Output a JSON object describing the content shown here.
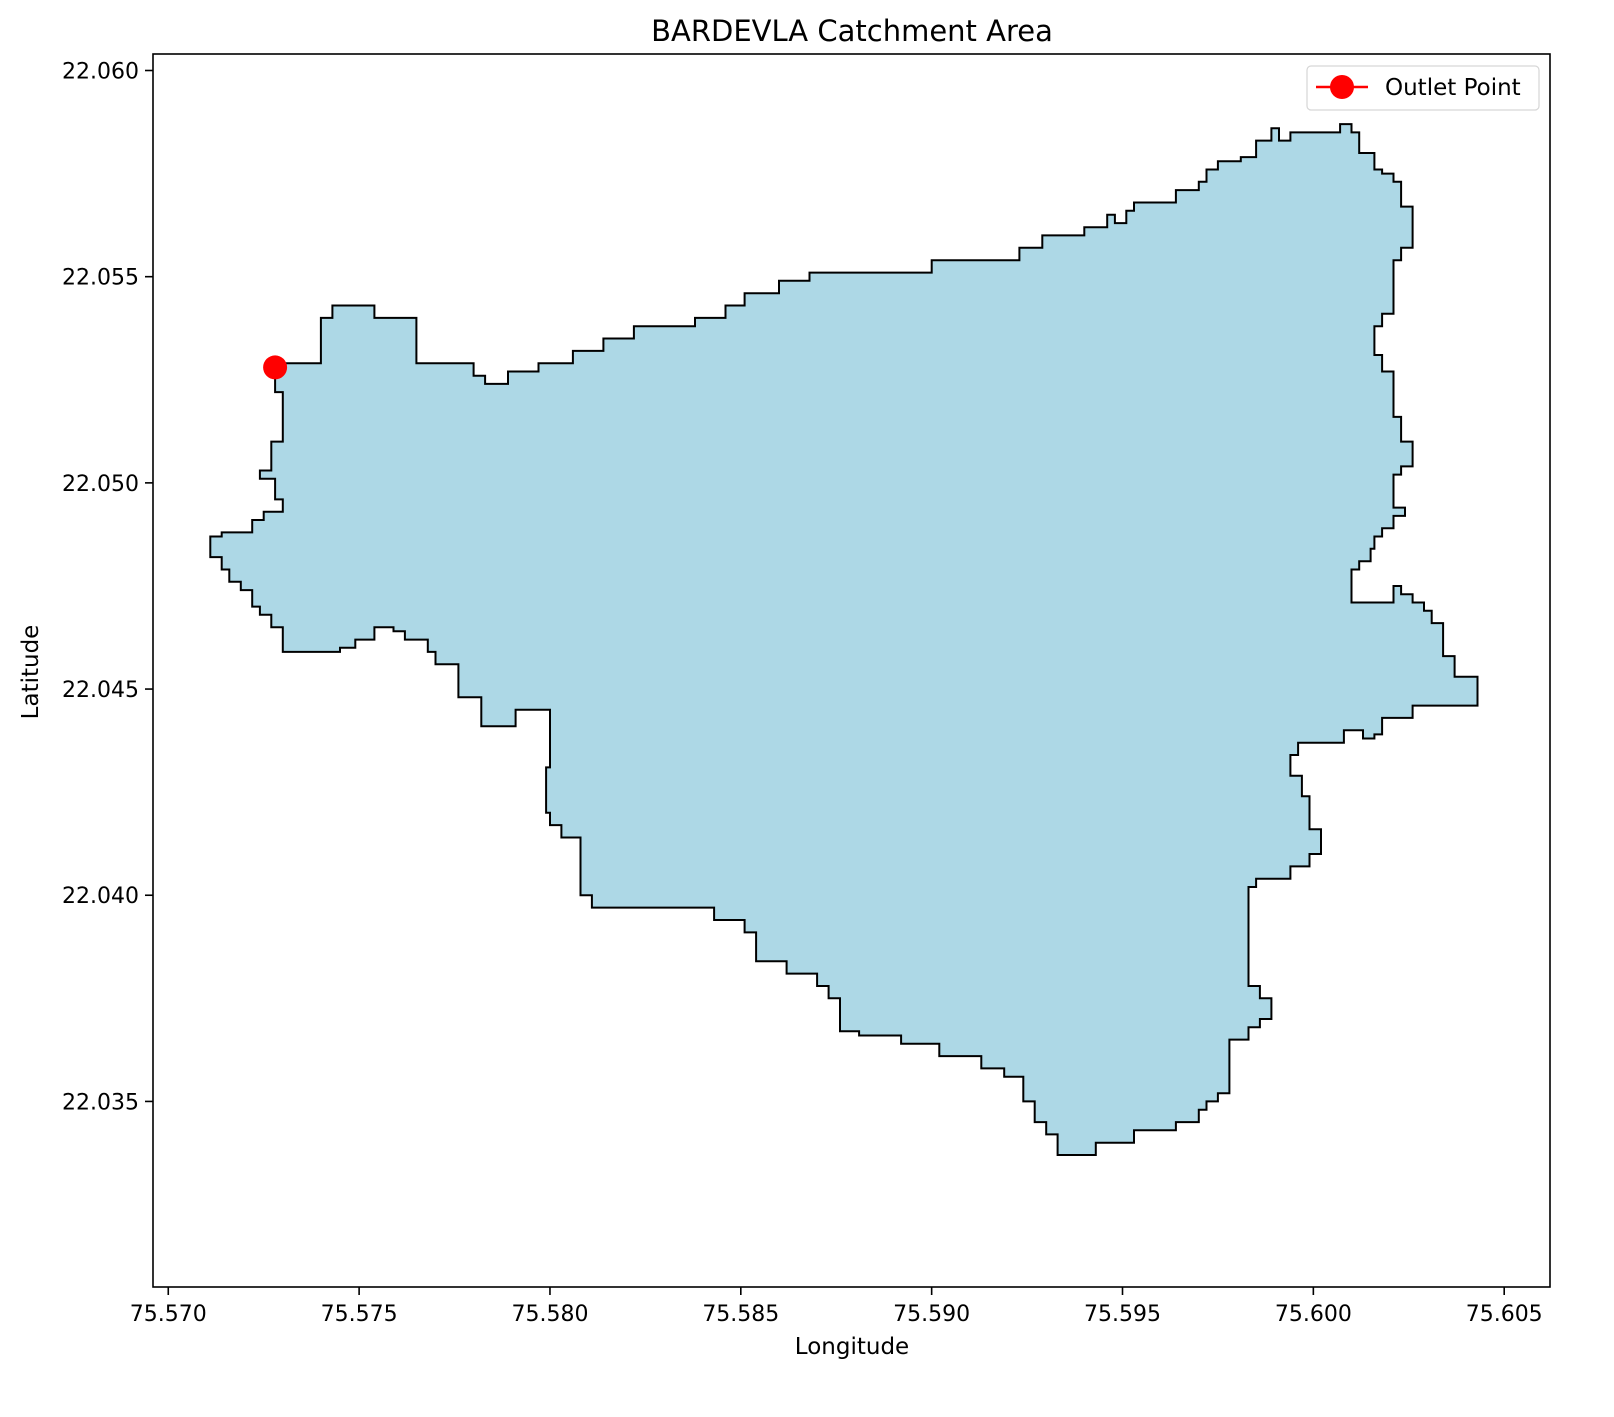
{
  "chart_data": {
    "type": "map",
    "title": "BARDEVLA Catchment Area",
    "xlabel": "Longitude",
    "ylabel": "Latitude",
    "xlim": [
      75.5696,
      75.6062
    ],
    "ylim": [
      22.0305,
      22.0604
    ],
    "xticks": [
      75.57,
      75.575,
      75.58,
      75.585,
      75.59,
      75.595,
      75.6,
      75.605
    ],
    "xtick_labels": [
      "75.570",
      "75.575",
      "75.580",
      "75.585",
      "75.590",
      "75.595",
      "75.600",
      "75.605"
    ],
    "yticks": [
      22.035,
      22.04,
      22.045,
      22.05,
      22.055,
      22.06
    ],
    "ytick_labels": [
      "22.035",
      "22.040",
      "22.045",
      "22.050",
      "22.055",
      "22.060"
    ],
    "grid": false,
    "legend_position": "top-right",
    "legend": [
      {
        "label": "Outlet Point",
        "color": "#ff0000",
        "marker": "circle"
      }
    ],
    "catchment": {
      "fill": "#add8e6",
      "edge": "#000000",
      "boundary": [
        [
          75.5728,
          22.0529
        ],
        [
          75.574,
          22.0529
        ],
        [
          75.574,
          22.054
        ],
        [
          75.5743,
          22.054
        ],
        [
          75.5743,
          22.0543
        ],
        [
          75.5754,
          22.0543
        ],
        [
          75.5754,
          22.054
        ],
        [
          75.5765,
          22.054
        ],
        [
          75.5765,
          22.0529
        ],
        [
          75.578,
          22.0529
        ],
        [
          75.578,
          22.0526
        ],
        [
          75.5783,
          22.0526
        ],
        [
          75.5783,
          22.0524
        ],
        [
          75.5789,
          22.0524
        ],
        [
          75.5789,
          22.0527
        ],
        [
          75.5797,
          22.0527
        ],
        [
          75.5797,
          22.0529
        ],
        [
          75.5806,
          22.0529
        ],
        [
          75.5806,
          22.0532
        ],
        [
          75.5814,
          22.0532
        ],
        [
          75.5814,
          22.0535
        ],
        [
          75.5822,
          22.0535
        ],
        [
          75.5822,
          22.0538
        ],
        [
          75.5838,
          22.0538
        ],
        [
          75.5838,
          22.054
        ],
        [
          75.5846,
          22.054
        ],
        [
          75.5846,
          22.0543
        ],
        [
          75.5851,
          22.0543
        ],
        [
          75.5851,
          22.0546
        ],
        [
          75.586,
          22.0546
        ],
        [
          75.586,
          22.0549
        ],
        [
          75.5868,
          22.0549
        ],
        [
          75.5868,
          22.0551
        ],
        [
          75.59,
          22.0551
        ],
        [
          75.59,
          22.0554
        ],
        [
          75.5923,
          22.0554
        ],
        [
          75.5923,
          22.0557
        ],
        [
          75.5929,
          22.0557
        ],
        [
          75.5929,
          22.056
        ],
        [
          75.594,
          22.056
        ],
        [
          75.594,
          22.0562
        ],
        [
          75.5946,
          22.0562
        ],
        [
          75.5946,
          22.0565
        ],
        [
          75.5948,
          22.0565
        ],
        [
          75.5948,
          22.0563
        ],
        [
          75.5951,
          22.0563
        ],
        [
          75.5951,
          22.0566
        ],
        [
          75.5953,
          22.0566
        ],
        [
          75.5953,
          22.0568
        ],
        [
          75.5964,
          22.0568
        ],
        [
          75.5964,
          22.0571
        ],
        [
          75.597,
          22.0571
        ],
        [
          75.597,
          22.0573
        ],
        [
          75.5972,
          22.0573
        ],
        [
          75.5972,
          22.0576
        ],
        [
          75.5975,
          22.0576
        ],
        [
          75.5975,
          22.0578
        ],
        [
          75.5981,
          22.0578
        ],
        [
          75.5981,
          22.0579
        ],
        [
          75.5985,
          22.0579
        ],
        [
          75.5985,
          22.0583
        ],
        [
          75.5989,
          22.0583
        ],
        [
          75.5989,
          22.0586
        ],
        [
          75.5991,
          22.0586
        ],
        [
          75.5991,
          22.0583
        ],
        [
          75.5994,
          22.0583
        ],
        [
          75.5994,
          22.0585
        ],
        [
          75.6007,
          22.0585
        ],
        [
          75.6007,
          22.0587
        ],
        [
          75.601,
          22.0587
        ],
        [
          75.601,
          22.0585
        ],
        [
          75.6012,
          22.0585
        ],
        [
          75.6012,
          22.058
        ],
        [
          75.6016,
          22.058
        ],
        [
          75.6016,
          22.0576
        ],
        [
          75.6018,
          22.0576
        ],
        [
          75.6018,
          22.0575
        ],
        [
          75.6021,
          22.0575
        ],
        [
          75.6021,
          22.0573
        ],
        [
          75.6023,
          22.0573
        ],
        [
          75.6023,
          22.0567
        ],
        [
          75.6026,
          22.0567
        ],
        [
          75.6026,
          22.0557
        ],
        [
          75.6023,
          22.0557
        ],
        [
          75.6023,
          22.0554
        ],
        [
          75.6021,
          22.0554
        ],
        [
          75.6021,
          22.0541
        ],
        [
          75.6018,
          22.0541
        ],
        [
          75.6018,
          22.0538
        ],
        [
          75.6016,
          22.0538
        ],
        [
          75.6016,
          22.0531
        ],
        [
          75.6018,
          22.0531
        ],
        [
          75.6018,
          22.0527
        ],
        [
          75.6021,
          22.0527
        ],
        [
          75.6021,
          22.0516
        ],
        [
          75.6023,
          22.0516
        ],
        [
          75.6023,
          22.051
        ],
        [
          75.6026,
          22.051
        ],
        [
          75.6026,
          22.0504
        ],
        [
          75.6023,
          22.0504
        ],
        [
          75.6023,
          22.0502
        ],
        [
          75.6021,
          22.0502
        ],
        [
          75.6021,
          22.0494
        ],
        [
          75.6024,
          22.0494
        ],
        [
          75.6024,
          22.0492
        ],
        [
          75.6021,
          22.0492
        ],
        [
          75.6021,
          22.0489
        ],
        [
          75.6018,
          22.0489
        ],
        [
          75.6018,
          22.0487
        ],
        [
          75.6016,
          22.0487
        ],
        [
          75.6016,
          22.0484
        ],
        [
          75.6015,
          22.0484
        ],
        [
          75.6015,
          22.0481
        ],
        [
          75.6012,
          22.0481
        ],
        [
          75.6012,
          22.0479
        ],
        [
          75.601,
          22.0479
        ],
        [
          75.601,
          22.0471
        ],
        [
          75.6021,
          22.0471
        ],
        [
          75.6021,
          22.0475
        ],
        [
          75.6023,
          22.0475
        ],
        [
          75.6023,
          22.0473
        ],
        [
          75.6026,
          22.0473
        ],
        [
          75.6026,
          22.0471
        ],
        [
          75.6029,
          22.0471
        ],
        [
          75.6029,
          22.0469
        ],
        [
          75.6031,
          22.0469
        ],
        [
          75.6031,
          22.0466
        ],
        [
          75.6034,
          22.0466
        ],
        [
          75.6034,
          22.0458
        ],
        [
          75.6037,
          22.0458
        ],
        [
          75.6037,
          22.0453
        ],
        [
          75.6043,
          22.0453
        ],
        [
          75.6043,
          22.0446
        ],
        [
          75.6026,
          22.0446
        ],
        [
          75.6026,
          22.0443
        ],
        [
          75.6018,
          22.0443
        ],
        [
          75.6018,
          22.0439
        ],
        [
          75.6016,
          22.0439
        ],
        [
          75.6016,
          22.0438
        ],
        [
          75.6013,
          22.0438
        ],
        [
          75.6013,
          22.044
        ],
        [
          75.6008,
          22.044
        ],
        [
          75.6008,
          22.0437
        ],
        [
          75.5996,
          22.0437
        ],
        [
          75.5996,
          22.0434
        ],
        [
          75.5994,
          22.0434
        ],
        [
          75.5994,
          22.0429
        ],
        [
          75.5997,
          22.0429
        ],
        [
          75.5997,
          22.0424
        ],
        [
          75.5999,
          22.0424
        ],
        [
          75.5999,
          22.0416
        ],
        [
          75.6002,
          22.0416
        ],
        [
          75.6002,
          22.041
        ],
        [
          75.5999,
          22.041
        ],
        [
          75.5999,
          22.0407
        ],
        [
          75.5994,
          22.0407
        ],
        [
          75.5994,
          22.0404
        ],
        [
          75.5985,
          22.0404
        ],
        [
          75.5985,
          22.0402
        ],
        [
          75.5983,
          22.0402
        ],
        [
          75.5983,
          22.0378
        ],
        [
          75.5986,
          22.0378
        ],
        [
          75.5986,
          22.0375
        ],
        [
          75.5989,
          22.0375
        ],
        [
          75.5989,
          22.037
        ],
        [
          75.5986,
          22.037
        ],
        [
          75.5986,
          22.0368
        ],
        [
          75.5983,
          22.0368
        ],
        [
          75.5983,
          22.0365
        ],
        [
          75.5978,
          22.0365
        ],
        [
          75.5978,
          22.0352
        ],
        [
          75.5975,
          22.0352
        ],
        [
          75.5975,
          22.035
        ],
        [
          75.5972,
          22.035
        ],
        [
          75.5972,
          22.0348
        ],
        [
          75.597,
          22.0348
        ],
        [
          75.597,
          22.0345
        ],
        [
          75.5964,
          22.0345
        ],
        [
          75.5964,
          22.0343
        ],
        [
          75.5953,
          22.0343
        ],
        [
          75.5953,
          22.034
        ],
        [
          75.5943,
          22.034
        ],
        [
          75.5943,
          22.0337
        ],
        [
          75.5933,
          22.0337
        ],
        [
          75.5933,
          22.0342
        ],
        [
          75.593,
          22.0342
        ],
        [
          75.593,
          22.0345
        ],
        [
          75.5927,
          22.0345
        ],
        [
          75.5927,
          22.035
        ],
        [
          75.5924,
          22.035
        ],
        [
          75.5924,
          22.0356
        ],
        [
          75.5919,
          22.0356
        ],
        [
          75.5919,
          22.0358
        ],
        [
          75.5913,
          22.0358
        ],
        [
          75.5913,
          22.0361
        ],
        [
          75.5902,
          22.0361
        ],
        [
          75.5902,
          22.0364
        ],
        [
          75.5892,
          22.0364
        ],
        [
          75.5892,
          22.0366
        ],
        [
          75.5881,
          22.0366
        ],
        [
          75.5881,
          22.0367
        ],
        [
          75.5876,
          22.0367
        ],
        [
          75.5876,
          22.0375
        ],
        [
          75.5873,
          22.0375
        ],
        [
          75.5873,
          22.0378
        ],
        [
          75.587,
          22.0378
        ],
        [
          75.587,
          22.0381
        ],
        [
          75.5862,
          22.0381
        ],
        [
          75.5862,
          22.0384
        ],
        [
          75.5854,
          22.0384
        ],
        [
          75.5854,
          22.0391
        ],
        [
          75.5851,
          22.0391
        ],
        [
          75.5851,
          22.0394
        ],
        [
          75.5843,
          22.0394
        ],
        [
          75.5843,
          22.0397
        ],
        [
          75.5811,
          22.0397
        ],
        [
          75.5811,
          22.04
        ],
        [
          75.5808,
          22.04
        ],
        [
          75.5808,
          22.0414
        ],
        [
          75.5803,
          22.0414
        ],
        [
          75.5803,
          22.0417
        ],
        [
          75.58,
          22.0417
        ],
        [
          75.58,
          22.042
        ],
        [
          75.5799,
          22.042
        ],
        [
          75.5799,
          22.0431
        ],
        [
          75.58,
          22.0431
        ],
        [
          75.58,
          22.0445
        ],
        [
          75.5791,
          22.0445
        ],
        [
          75.5791,
          22.0441
        ],
        [
          75.5782,
          22.0441
        ],
        [
          75.5782,
          22.0448
        ],
        [
          75.5776,
          22.0448
        ],
        [
          75.5776,
          22.0456
        ],
        [
          75.577,
          22.0456
        ],
        [
          75.577,
          22.0459
        ],
        [
          75.5768,
          22.0459
        ],
        [
          75.5768,
          22.0462
        ],
        [
          75.5762,
          22.0462
        ],
        [
          75.5762,
          22.0464
        ],
        [
          75.5759,
          22.0464
        ],
        [
          75.5759,
          22.0465
        ],
        [
          75.5754,
          22.0465
        ],
        [
          75.5754,
          22.0462
        ],
        [
          75.5749,
          22.0462
        ],
        [
          75.5749,
          22.046
        ],
        [
          75.5745,
          22.046
        ],
        [
          75.5745,
          22.0459
        ],
        [
          75.573,
          22.0459
        ],
        [
          75.573,
          22.0465
        ],
        [
          75.5727,
          22.0465
        ],
        [
          75.5727,
          22.0468
        ],
        [
          75.5724,
          22.0468
        ],
        [
          75.5724,
          22.047
        ],
        [
          75.5722,
          22.047
        ],
        [
          75.5722,
          22.0474
        ],
        [
          75.5719,
          22.0474
        ],
        [
          75.5719,
          22.0476
        ],
        [
          75.5716,
          22.0476
        ],
        [
          75.5716,
          22.0479
        ],
        [
          75.5714,
          22.0479
        ],
        [
          75.5714,
          22.0482
        ],
        [
          75.5711,
          22.0482
        ],
        [
          75.5711,
          22.0487
        ],
        [
          75.5714,
          22.0487
        ],
        [
          75.5714,
          22.0488
        ],
        [
          75.5722,
          22.0488
        ],
        [
          75.5722,
          22.0491
        ],
        [
          75.5725,
          22.0491
        ],
        [
          75.5725,
          22.0493
        ],
        [
          75.573,
          22.0493
        ],
        [
          75.573,
          22.0496
        ],
        [
          75.5728,
          22.0496
        ],
        [
          75.5728,
          22.0501
        ],
        [
          75.5724,
          22.0501
        ],
        [
          75.5724,
          22.0503
        ],
        [
          75.5727,
          22.0503
        ],
        [
          75.5727,
          22.051
        ],
        [
          75.573,
          22.051
        ],
        [
          75.573,
          22.0522
        ],
        [
          75.5728,
          22.0522
        ],
        [
          75.5728,
          22.0529
        ]
      ]
    },
    "outlet_point": {
      "name": "Outlet Point",
      "longitude": 75.5728,
      "latitude": 22.0528,
      "color": "#ff0000"
    }
  }
}
